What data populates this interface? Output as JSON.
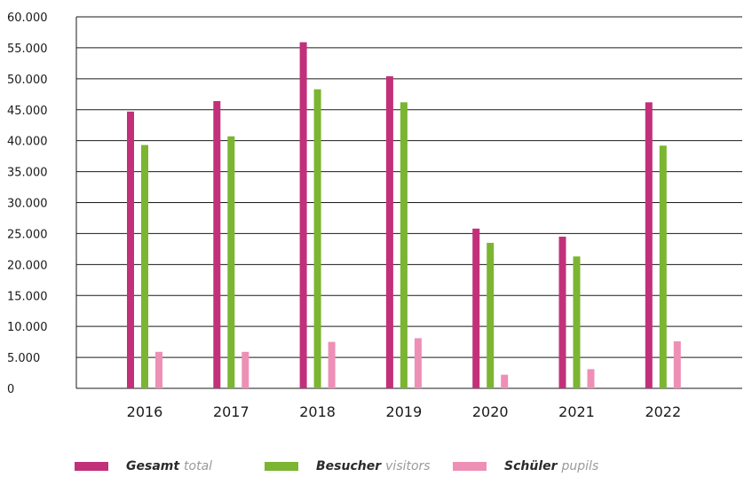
{
  "chart_data": {
    "type": "bar",
    "categories": [
      "2016",
      "2017",
      "2018",
      "2019",
      "2020",
      "2021",
      "2022"
    ],
    "series": [
      {
        "name": "Gesamt",
        "name_en": "total",
        "color": "#c2307a",
        "values": [
          44700,
          46400,
          55900,
          50400,
          25800,
          24500,
          46200
        ]
      },
      {
        "name": "Besucher",
        "name_en": "visitors",
        "color": "#7bb531",
        "values": [
          39300,
          40700,
          48300,
          46200,
          23500,
          21300,
          39200
        ]
      },
      {
        "name": "Schüler",
        "name_en": "pupils",
        "color": "#ee8fb6",
        "values": [
          5900,
          5900,
          7500,
          8100,
          2200,
          3100,
          7600
        ]
      }
    ],
    "ylim": [
      0,
      60000
    ],
    "yticks": [
      0,
      5000,
      10000,
      15000,
      20000,
      25000,
      30000,
      35000,
      40000,
      45000,
      50000,
      55000,
      60000
    ],
    "ytick_labels": [
      "0",
      "5.000",
      "10.000",
      "15.000",
      "20.000",
      "25.000",
      "30.000",
      "35.000",
      "40.000",
      "45.000",
      "50.000",
      "55.000",
      "60.000"
    ],
    "grid": true,
    "legend_position": "bottom",
    "title": "",
    "xlabel": "",
    "ylabel": ""
  }
}
